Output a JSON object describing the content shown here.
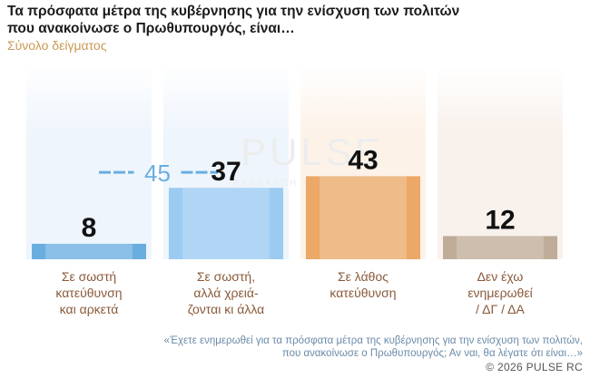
{
  "chart_data": {
    "type": "bar",
    "title": "Τα πρόσφατα μέτρα της κυβέρνησης για την ενίσχυση των πολιτών",
    "title_line2": "που ανακοίνωσε ο Πρωθυπουργός, είναι…",
    "subtitle": "Σύνολο δείγματος",
    "categories": [
      [
        "Σε σωστή",
        "κατεύθυνση",
        "και αρκετά"
      ],
      [
        "Σε σωστή,",
        "αλλά χρειά-",
        "ζονται κι άλλα"
      ],
      [
        "Σε λάθος",
        "κατεύθυνση"
      ],
      [
        "Δεν έχω",
        "ενημερωθεί",
        "/ ΔΓ / ΔΑ"
      ]
    ],
    "values": [
      8,
      37,
      43,
      12
    ],
    "group_total": {
      "value": 45,
      "spans": [
        0,
        1
      ]
    },
    "colors": [
      "#6aaee0",
      "#9ccbf2",
      "#eba867",
      "#bfac98"
    ],
    "column_bg": [
      "#eef5fc",
      "#eef5fc",
      "#fdf2e8",
      "#f8f1ec"
    ],
    "ylim": [
      0,
      100
    ]
  },
  "watermark": {
    "brand": "PULSE",
    "tagline": "RESEARCH & CONSULTING"
  },
  "footnote": {
    "line1": "«Έχετε ενημερωθεί για τα πρόσφατα μέτρα της κυβέρνησης για την ενίσχυση των πολιτών,",
    "line2": "που ανακοίνωσε ο Πρωθυπουργός; Αν ναι, θα λέγατε ότι είναι…»"
  },
  "copyright": "©  2026  PULSE RC"
}
